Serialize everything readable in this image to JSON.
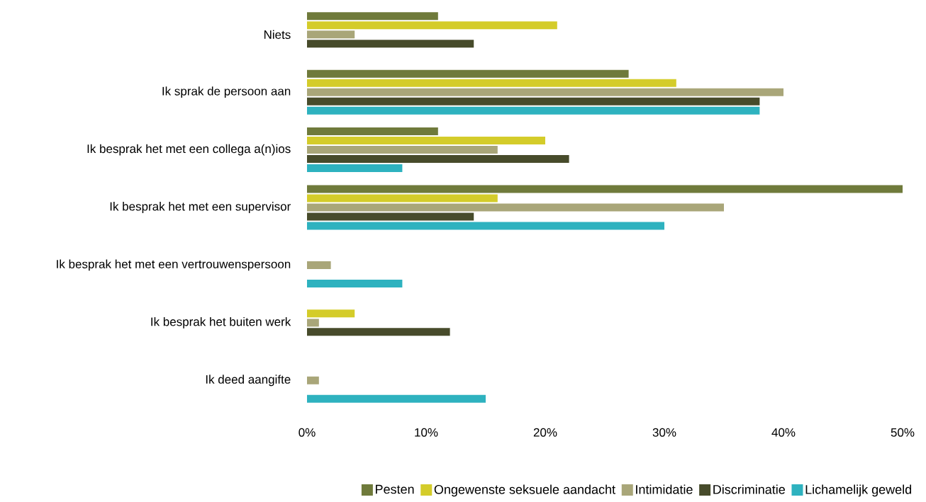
{
  "chart_data": {
    "type": "bar",
    "orientation": "horizontal",
    "categories": [
      "Niets",
      "Ik sprak de persoon aan",
      "Ik besprak het met een collega a(n)ios",
      "Ik besprak het met een supervisor",
      "Ik besprak het met een vertrouwenspersoon",
      "Ik besprak het buiten werk",
      "Ik deed aangifte"
    ],
    "series": [
      {
        "name": "Pesten",
        "color": "#6f7a3b",
        "values": [
          11,
          27,
          11,
          50,
          0,
          0,
          0
        ]
      },
      {
        "name": "Ongewenste seksuele aandacht",
        "color": "#d4cc2a",
        "values": [
          21,
          31,
          20,
          16,
          0,
          4,
          0
        ]
      },
      {
        "name": "Intimidatie",
        "color": "#a9a679",
        "values": [
          4,
          40,
          16,
          35,
          2,
          1,
          1
        ]
      },
      {
        "name": "Discriminatie",
        "color": "#474b2b",
        "values": [
          14,
          38,
          22,
          14,
          0,
          12,
          0
        ]
      },
      {
        "name": "Lichamelijk geweld",
        "color": "#2eb2bf",
        "values": [
          0,
          38,
          8,
          30,
          8,
          0,
          15
        ]
      }
    ],
    "xlim": [
      0,
      50
    ],
    "xticks": [
      {
        "value": 0,
        "label": "0%"
      },
      {
        "value": 10,
        "label": "10%"
      },
      {
        "value": 20,
        "label": "20%"
      },
      {
        "value": 30,
        "label": "30%"
      },
      {
        "value": 40,
        "label": "40%"
      },
      {
        "value": 50,
        "label": "50%"
      }
    ],
    "grid": false,
    "legend": "bottom right"
  }
}
